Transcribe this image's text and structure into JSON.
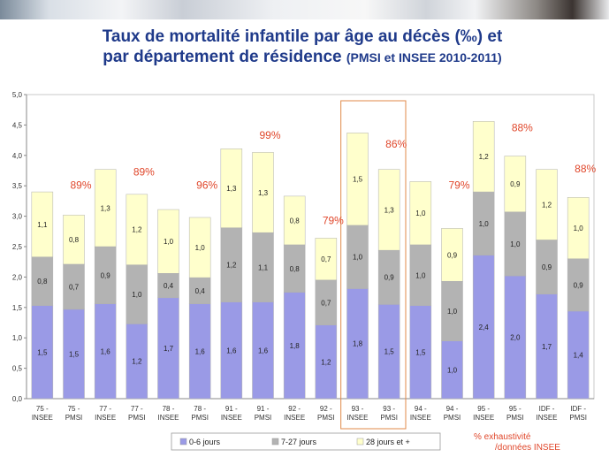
{
  "title_line1": "Taux de mortalité infantile par âge au décès (‰) et",
  "title_line2": "par département de résidence",
  "title_source": "(PMSI et INSEE 2010-2011)",
  "note_line1": "% exhaustivité",
  "note_line2": "/données INSEE",
  "colors": {
    "series_0": "#9a9ae6",
    "series_1": "#b3b3b3",
    "series_2": "#ffffcc",
    "pct": "#e0472b",
    "highlight": "#e08a4a",
    "title": "#1f3a8a"
  },
  "chart_data": {
    "type": "bar",
    "stacked": true,
    "ylim": [
      0,
      5.0
    ],
    "yticks": [
      "0,0",
      "0,5",
      "1,0",
      "1,5",
      "2,0",
      "2,5",
      "3,0",
      "3,5",
      "4,0",
      "4,5",
      "5,0"
    ],
    "ytick_values": [
      0,
      0.5,
      1.0,
      1.5,
      2.0,
      2.5,
      3.0,
      3.5,
      4.0,
      4.5,
      5.0
    ],
    "categories": [
      [
        "75 -",
        "INSEE"
      ],
      [
        "75 -",
        "PMSI"
      ],
      [
        "77 -",
        "INSEE"
      ],
      [
        "77 -",
        "PMSI"
      ],
      [
        "78 -",
        "INSEE"
      ],
      [
        "78 -",
        "PMSI"
      ],
      [
        "91 -",
        "INSEE"
      ],
      [
        "91 -",
        "PMSI"
      ],
      [
        "92 -",
        "INSEE"
      ],
      [
        "92 -",
        "PMSI"
      ],
      [
        "93 -",
        "INSEE"
      ],
      [
        "93 -",
        "PMSI"
      ],
      [
        "94 -",
        "INSEE"
      ],
      [
        "94 -",
        "PMSI"
      ],
      [
        "95 -",
        "INSEE"
      ],
      [
        "95 -",
        "PMSI"
      ],
      [
        "IDF -",
        "INSEE"
      ],
      [
        "IDF -",
        "PMSI"
      ]
    ],
    "series": [
      {
        "name": "0-6 jours",
        "values": [
          1.53,
          1.47,
          1.56,
          1.23,
          1.66,
          1.56,
          1.59,
          1.59,
          1.75,
          1.21,
          1.81,
          1.55,
          1.53,
          0.95,
          2.36,
          2.02,
          1.72,
          1.44
        ],
        "labels": [
          "1,5",
          "1,5",
          "1,6",
          "1,2",
          "1,7",
          "1,6",
          "1,6",
          "1,6",
          "1,8",
          "1,2",
          "1,8",
          "1,5",
          "1,5",
          "1,0",
          "2,4",
          "2,0",
          "1,7",
          "1,4"
        ]
      },
      {
        "name": "7-27 jours",
        "values": [
          0.8,
          0.74,
          0.94,
          0.97,
          0.4,
          0.43,
          1.22,
          1.14,
          0.78,
          0.74,
          1.04,
          0.89,
          1.0,
          0.98,
          1.04,
          1.05,
          0.89,
          0.86
        ],
        "labels": [
          "0,8",
          "0,7",
          "0,9",
          "1,0",
          "0,4",
          "0,4",
          "1,2",
          "1,1",
          "0,8",
          "0,7",
          "1,0",
          "0,9",
          "1,0",
          "1,0",
          "1,0",
          "1,0",
          "0,9",
          "0,9"
        ]
      },
      {
        "name": "28 jours et +",
        "values": [
          1.07,
          0.81,
          1.27,
          1.16,
          1.05,
          0.99,
          1.3,
          1.32,
          0.8,
          0.69,
          1.52,
          1.33,
          1.04,
          0.87,
          1.16,
          0.92,
          1.16,
          1.01
        ],
        "labels": [
          "1,1",
          "0,8",
          "1,3",
          "1,2",
          "1,0",
          "1,0",
          "1,3",
          "1,3",
          "0,8",
          "0,7",
          "1,5",
          "1,3",
          "1,0",
          "0,9",
          "1,2",
          "0,9",
          "1,2",
          "1,0"
        ]
      }
    ],
    "exhaustivity": [
      {
        "label": "89%",
        "after_bar": 1,
        "value": 3.45
      },
      {
        "label": "89%",
        "after_bar": 3,
        "value": 3.67
      },
      {
        "label": "96%",
        "after_bar": 5,
        "value": 3.45
      },
      {
        "label": "99%",
        "after_bar": 7,
        "value": 4.27
      },
      {
        "label": "79%",
        "after_bar": 9,
        "value": 2.87
      },
      {
        "label": "86%",
        "after_bar": 11,
        "value": 4.13
      },
      {
        "label": "79%",
        "after_bar": 13,
        "value": 3.45
      },
      {
        "label": "88%",
        "after_bar": 15,
        "value": 4.4
      },
      {
        "label": "88%",
        "after_bar": 17,
        "value": 3.72
      }
    ],
    "highlight_group": [
      10,
      11
    ],
    "legend_position": "bottom"
  }
}
